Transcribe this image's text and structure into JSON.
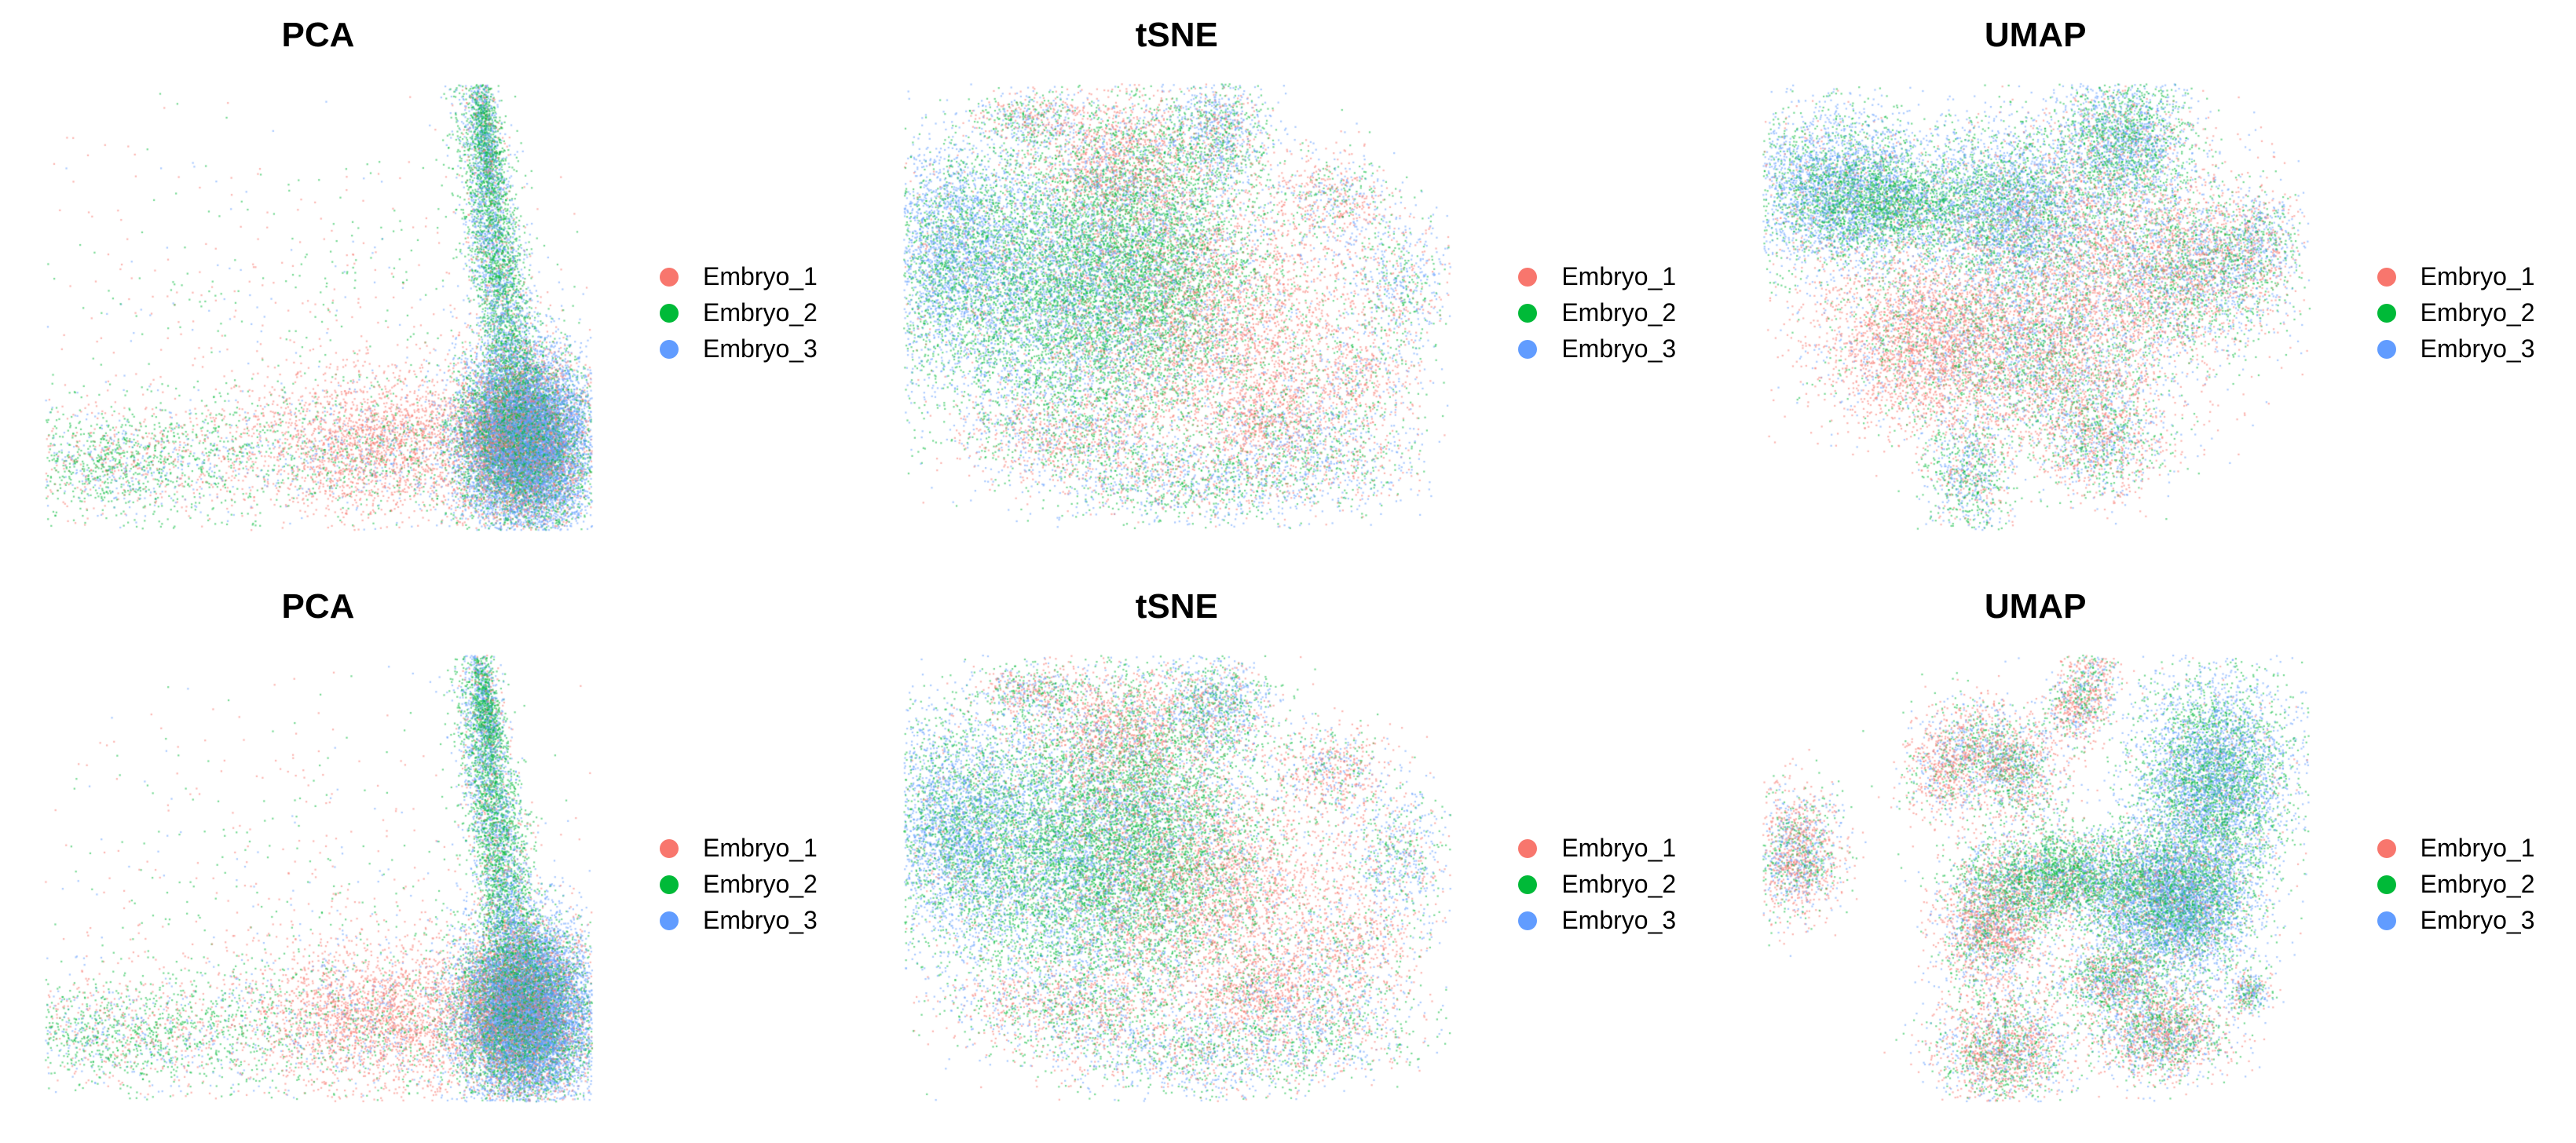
{
  "figure": {
    "panels": [
      {
        "title": "PCA",
        "layout": "pca",
        "seed": 11,
        "legend": [
          {
            "label": "Embryo_1",
            "color": "#F8766D"
          },
          {
            "label": "Embryo_2",
            "color": "#00BA38"
          },
          {
            "label": "Embryo_3",
            "color": "#619CFF"
          }
        ]
      },
      {
        "title": "tSNE",
        "layout": "tsne",
        "seed": 23,
        "legend": [
          {
            "label": "Embryo_1",
            "color": "#F8766D"
          },
          {
            "label": "Embryo_2",
            "color": "#00BA38"
          },
          {
            "label": "Embryo_3",
            "color": "#619CFF"
          }
        ]
      },
      {
        "title": "UMAP",
        "layout": "umap1",
        "seed": 37,
        "legend": [
          {
            "label": "Embryo_1",
            "color": "#F8766D"
          },
          {
            "label": "Embryo_2",
            "color": "#00BA38"
          },
          {
            "label": "Embryo_3",
            "color": "#619CFF"
          }
        ]
      },
      {
        "title": "PCA",
        "layout": "pca",
        "seed": 51,
        "legend": [
          {
            "label": "Embryo_1",
            "color": "#F8766D"
          },
          {
            "label": "Embryo_2",
            "color": "#00BA38"
          },
          {
            "label": "Embryo_3",
            "color": "#619CFF"
          }
        ]
      },
      {
        "title": "tSNE",
        "layout": "tsne",
        "seed": 67,
        "legend": [
          {
            "label": "Embryo_1",
            "color": "#F8766D"
          },
          {
            "label": "Embryo_2",
            "color": "#00BA38"
          },
          {
            "label": "Embryo_3",
            "color": "#619CFF"
          }
        ]
      },
      {
        "title": "UMAP",
        "layout": "umap2",
        "seed": 83,
        "legend": [
          {
            "label": "Embryo_1",
            "color": "#F8766D"
          },
          {
            "label": "Embryo_2",
            "color": "#00BA38"
          },
          {
            "label": "Embryo_3",
            "color": "#619CFF"
          }
        ]
      }
    ]
  },
  "chart_data": [
    {
      "type": "scatter",
      "title": "PCA",
      "xlabel": "",
      "ylabel": "",
      "axes_shown": false,
      "grid": false,
      "legend_position": "right",
      "series": [
        {
          "name": "Embryo_1",
          "color": "#F8766D"
        },
        {
          "name": "Embryo_2",
          "color": "#00BA38"
        },
        {
          "name": "Embryo_3",
          "color": "#619CFF"
        }
      ]
    },
    {
      "type": "scatter",
      "title": "tSNE",
      "xlabel": "",
      "ylabel": "",
      "axes_shown": false,
      "grid": false,
      "legend_position": "right",
      "series": [
        {
          "name": "Embryo_1",
          "color": "#F8766D"
        },
        {
          "name": "Embryo_2",
          "color": "#00BA38"
        },
        {
          "name": "Embryo_3",
          "color": "#619CFF"
        }
      ]
    },
    {
      "type": "scatter",
      "title": "UMAP",
      "xlabel": "",
      "ylabel": "",
      "axes_shown": false,
      "grid": false,
      "legend_position": "right",
      "series": [
        {
          "name": "Embryo_1",
          "color": "#F8766D"
        },
        {
          "name": "Embryo_2",
          "color": "#00BA38"
        },
        {
          "name": "Embryo_3",
          "color": "#619CFF"
        }
      ]
    },
    {
      "type": "scatter",
      "title": "PCA",
      "xlabel": "",
      "ylabel": "",
      "axes_shown": false,
      "grid": false,
      "legend_position": "right",
      "series": [
        {
          "name": "Embryo_1",
          "color": "#F8766D"
        },
        {
          "name": "Embryo_2",
          "color": "#00BA38"
        },
        {
          "name": "Embryo_3",
          "color": "#619CFF"
        }
      ]
    },
    {
      "type": "scatter",
      "title": "tSNE",
      "xlabel": "",
      "ylabel": "",
      "axes_shown": false,
      "grid": false,
      "legend_position": "right",
      "series": [
        {
          "name": "Embryo_1",
          "color": "#F8766D"
        },
        {
          "name": "Embryo_2",
          "color": "#00BA38"
        },
        {
          "name": "Embryo_3",
          "color": "#619CFF"
        }
      ]
    },
    {
      "type": "scatter",
      "title": "UMAP",
      "xlabel": "",
      "ylabel": "",
      "axes_shown": false,
      "grid": false,
      "legend_position": "right",
      "series": [
        {
          "name": "Embryo_1",
          "color": "#F8766D"
        },
        {
          "name": "Embryo_2",
          "color": "#00BA38"
        },
        {
          "name": "Embryo_3",
          "color": "#619CFF"
        }
      ]
    }
  ]
}
